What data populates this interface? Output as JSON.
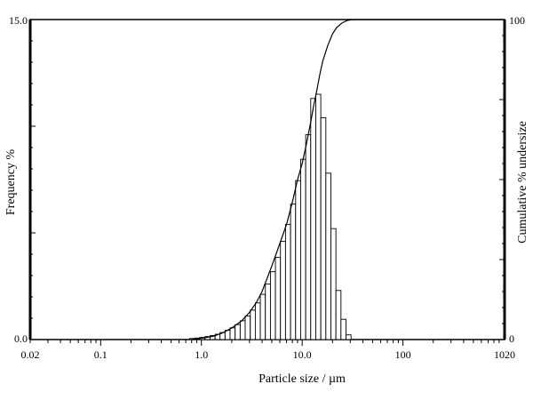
{
  "chart_data": {
    "type": "bar",
    "xscale": "log",
    "xlim": [
      0.02,
      1020
    ],
    "xticks": [
      {
        "value": 0.02,
        "label": "0.02"
      },
      {
        "value": 0.1,
        "label": "0.1"
      },
      {
        "value": 1.0,
        "label": "1.0"
      },
      {
        "value": 10.0,
        "label": "10.0"
      },
      {
        "value": 100,
        "label": "100"
      },
      {
        "value": 1020,
        "label": "1020"
      }
    ],
    "xlabel": "Particle size / µm",
    "y_left": {
      "label": "Frequency %",
      "ylim": [
        0,
        15
      ],
      "tick_top_label": "15.0",
      "tick_bottom_label": "0.0"
    },
    "y_right": {
      "label": "Cumulative % undersize",
      "ylim": [
        0,
        100
      ],
      "tick_top_label": "100",
      "tick_bottom_label": "0"
    },
    "histogram": {
      "bin_ratio": 1.122,
      "bins": [
        {
          "x": 0.81,
          "y": 0.05
        },
        {
          "x": 0.91,
          "y": 0.07
        },
        {
          "x": 1.02,
          "y": 0.1
        },
        {
          "x": 1.15,
          "y": 0.14
        },
        {
          "x": 1.29,
          "y": 0.19
        },
        {
          "x": 1.45,
          "y": 0.25
        },
        {
          "x": 1.62,
          "y": 0.33
        },
        {
          "x": 1.82,
          "y": 0.43
        },
        {
          "x": 2.04,
          "y": 0.55
        },
        {
          "x": 2.29,
          "y": 0.7
        },
        {
          "x": 2.57,
          "y": 0.88
        },
        {
          "x": 2.88,
          "y": 1.1
        },
        {
          "x": 3.24,
          "y": 1.38
        },
        {
          "x": 3.63,
          "y": 1.72
        },
        {
          "x": 4.07,
          "y": 2.12
        },
        {
          "x": 4.57,
          "y": 2.6
        },
        {
          "x": 5.13,
          "y": 3.18
        },
        {
          "x": 5.75,
          "y": 3.85
        },
        {
          "x": 6.45,
          "y": 4.6
        },
        {
          "x": 7.24,
          "y": 5.4
        },
        {
          "x": 8.13,
          "y": 6.35
        },
        {
          "x": 9.12,
          "y": 7.45
        },
        {
          "x": 10.23,
          "y": 8.45
        },
        {
          "x": 11.48,
          "y": 9.6
        },
        {
          "x": 12.88,
          "y": 11.3
        },
        {
          "x": 14.45,
          "y": 11.5
        },
        {
          "x": 16.22,
          "y": 10.4
        },
        {
          "x": 18.2,
          "y": 7.8
        },
        {
          "x": 20.42,
          "y": 5.2
        },
        {
          "x": 22.91,
          "y": 2.3
        },
        {
          "x": 25.7,
          "y": 0.95
        },
        {
          "x": 28.84,
          "y": 0.22
        }
      ]
    },
    "cumulative": {
      "x": [
        0.8,
        1.0,
        1.3,
        1.6,
        2.0,
        2.5,
        3.0,
        3.5,
        4.0,
        5.0,
        6.0,
        7.0,
        8.0,
        9.0,
        10.0,
        11.0,
        12.0,
        13.0,
        14.0,
        15.0,
        16.0,
        18.0,
        20.0,
        22.0,
        25.0,
        28.0,
        30.0,
        32.0
      ],
      "y": [
        0,
        0.4,
        1.0,
        2.0,
        3.6,
        5.8,
        8.5,
        11.5,
        15.0,
        23.0,
        30.0,
        36.0,
        43.0,
        50.0,
        55.0,
        61.0,
        67.0,
        73.0,
        78.0,
        83.0,
        87.0,
        92.0,
        95.5,
        97.5,
        99.0,
        99.7,
        99.9,
        100.0
      ]
    },
    "grid": false,
    "legend": "none"
  }
}
